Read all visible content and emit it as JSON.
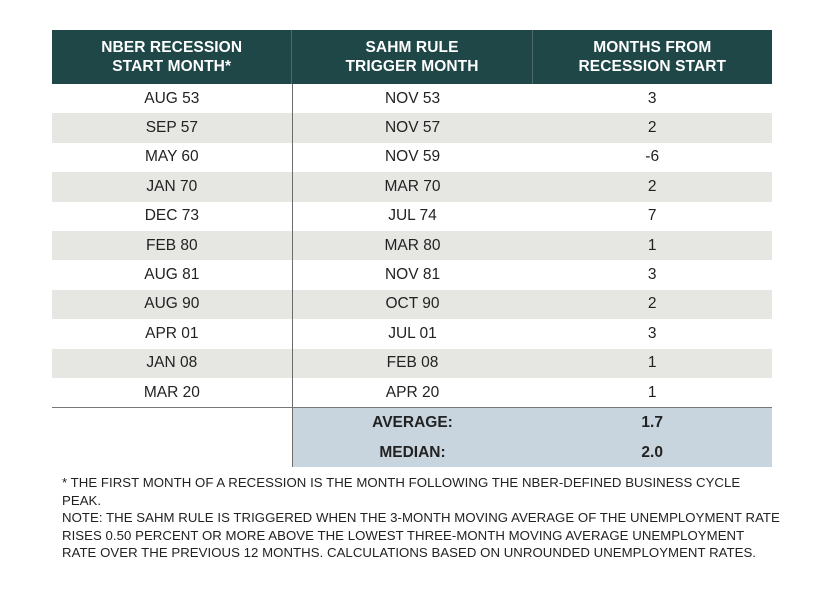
{
  "chart_data": {
    "type": "table",
    "columns": [
      [
        "NBER RECESSION",
        "START MONTH*"
      ],
      [
        "SAHM RULE",
        "TRIGGER MONTH"
      ],
      [
        "MONTHS FROM",
        "RECESSION START"
      ]
    ],
    "rows": [
      [
        "AUG 53",
        "NOV 53",
        "3"
      ],
      [
        "SEP 57",
        "NOV 57",
        "2"
      ],
      [
        "MAY 60",
        "NOV 59",
        "-6"
      ],
      [
        "JAN 70",
        "MAR 70",
        "2"
      ],
      [
        "DEC 73",
        "JUL 74",
        "7"
      ],
      [
        "FEB 80",
        "MAR 80",
        "1"
      ],
      [
        "AUG 81",
        "NOV 81",
        "3"
      ],
      [
        "AUG 90",
        "OCT 90",
        "2"
      ],
      [
        "APR 01",
        "JUL 01",
        "3"
      ],
      [
        "JAN 08",
        "FEB 08",
        "1"
      ],
      [
        "MAR 20",
        "APR 20",
        "1"
      ]
    ],
    "summary": [
      {
        "label": "AVERAGE:",
        "value": "1.7"
      },
      {
        "label": "MEDIAN:",
        "value": "2.0"
      }
    ]
  },
  "notes": {
    "footnote": "* THE FIRST MONTH OF A RECESSION IS THE MONTH FOLLOWING THE NBER-DEFINED BUSINESS CYCLE PEAK.",
    "note": "NOTE: THE SAHM RULE IS TRIGGERED WHEN THE 3-MONTH MOVING AVERAGE OF THE UNEMPLOYMENT RATE RISES 0.50 PERCENT OR MORE ABOVE THE LOWEST THREE-MONTH MOVING AVERAGE UNEMPLOYMENT RATE OVER THE PREVIOUS 12 MONTHS. CALCULATIONS BASED ON UNROUNDED UNEMPLOYMENT RATES."
  },
  "colors": {
    "header_bg": "#1f4747",
    "header_text": "#ffffff",
    "stripe": "#e6e6e3",
    "summary_bg": "#c9d5de"
  }
}
